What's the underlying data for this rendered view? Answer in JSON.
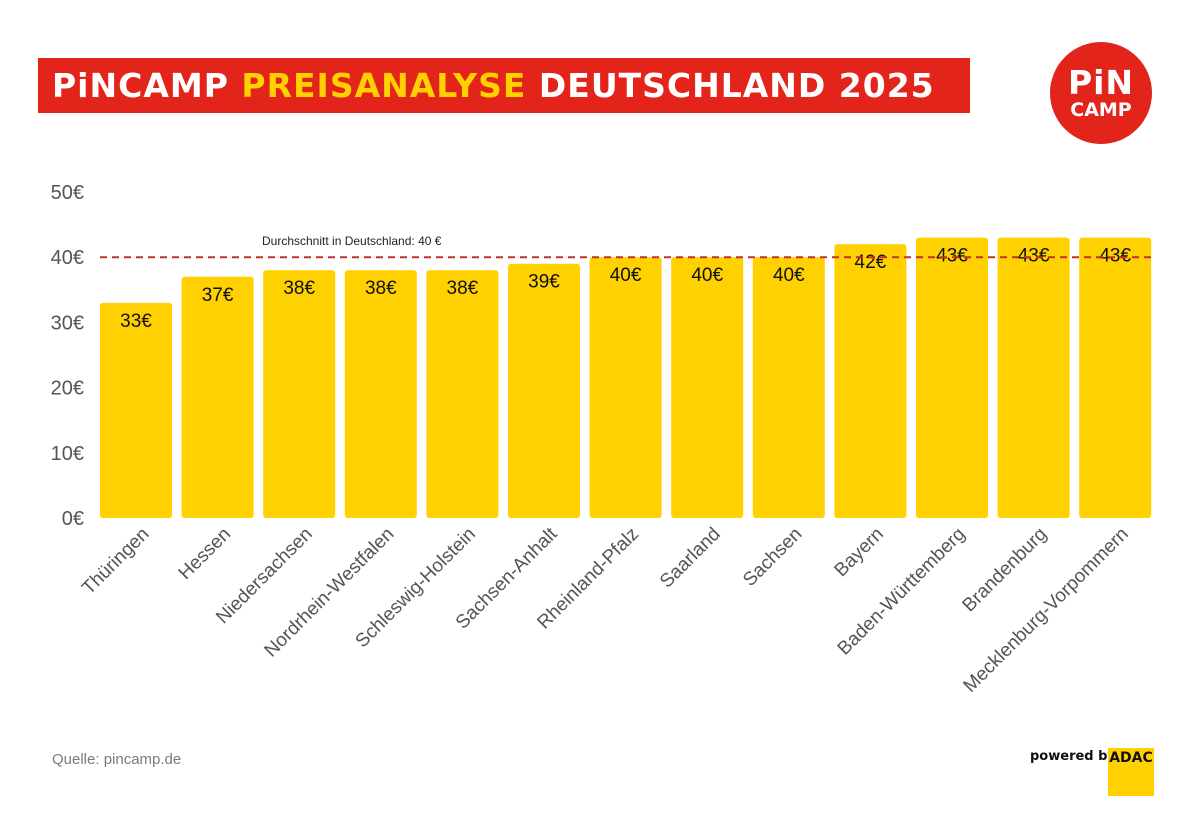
{
  "header": {
    "title_part1": "PiNCAMP",
    "title_part2": "PREISANALYSE",
    "title_part3": "DEUTSCHLAND 2025"
  },
  "logo": {
    "line1": "PiN",
    "line2": "CAMP"
  },
  "footer": {
    "source": "Quelle: pincamp.de",
    "powered_by": "powered by",
    "adac": "ADAC"
  },
  "colors": {
    "brand_red": "#e3241b",
    "bar_yellow": "#ffd100",
    "reference_line": "#c0312a",
    "axis_text": "#555555"
  },
  "chart_data": {
    "type": "bar",
    "categories": [
      "Thüringen",
      "Hessen",
      "Niedersachsen",
      "Nordrhein-Westfalen",
      "Schleswig-Holstein",
      "Sachsen-Anhalt",
      "Rheinland-Pfalz",
      "Saarland",
      "Sachsen",
      "Bayern",
      "Baden-Württemberg",
      "Brandenburg",
      "Mecklenburg-Vorpommern"
    ],
    "values": [
      33,
      37,
      38,
      38,
      38,
      39,
      40,
      40,
      40,
      42,
      43,
      43,
      43
    ],
    "value_labels": [
      "33€",
      "37€",
      "38€",
      "38€",
      "38€",
      "39€",
      "40€",
      "40€",
      "40€",
      "42€",
      "43€",
      "43€",
      "43€"
    ],
    "y_ticks": [
      0,
      10,
      20,
      30,
      40,
      50
    ],
    "y_tick_labels": [
      "0€",
      "10€",
      "20€",
      "30€",
      "40€",
      "50€"
    ],
    "ylim": [
      0,
      50
    ],
    "reference_line": {
      "value": 40,
      "label": "Durchschnitt in Deutschland: 40 €"
    },
    "grid": false,
    "legend": "none"
  }
}
